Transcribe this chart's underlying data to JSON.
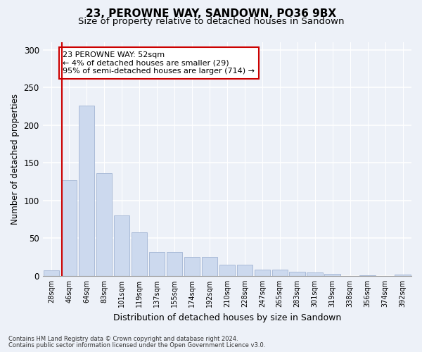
{
  "title1": "23, PEROWNE WAY, SANDOWN, PO36 9BX",
  "title2": "Size of property relative to detached houses in Sandown",
  "xlabel": "Distribution of detached houses by size in Sandown",
  "ylabel": "Number of detached properties",
  "bar_labels": [
    "28sqm",
    "46sqm",
    "64sqm",
    "83sqm",
    "101sqm",
    "119sqm",
    "137sqm",
    "155sqm",
    "174sqm",
    "192sqm",
    "210sqm",
    "228sqm",
    "247sqm",
    "265sqm",
    "283sqm",
    "301sqm",
    "319sqm",
    "338sqm",
    "356sqm",
    "374sqm",
    "392sqm"
  ],
  "bar_values": [
    7,
    127,
    226,
    136,
    80,
    58,
    32,
    32,
    25,
    25,
    15,
    15,
    8,
    8,
    6,
    5,
    3,
    0,
    1,
    0,
    2
  ],
  "bar_color": "#ccd9ee",
  "bar_edge_color": "#aabbd8",
  "vline_x": 0.575,
  "vline_color": "#cc0000",
  "annotation_text": "23 PEROWNE WAY: 52sqm\n← 4% of detached houses are smaller (29)\n95% of semi-detached houses are larger (714) →",
  "annotation_box_color": "#ffffff",
  "annotation_box_edge": "#cc0000",
  "ylim": [
    0,
    310
  ],
  "yticks": [
    0,
    50,
    100,
    150,
    200,
    250,
    300
  ],
  "footer1": "Contains HM Land Registry data © Crown copyright and database right 2024.",
  "footer2": "Contains public sector information licensed under the Open Government Licence v3.0.",
  "bg_color": "#edf1f8",
  "grid_color": "#ffffff",
  "title1_fontsize": 11,
  "title2_fontsize": 9.5
}
